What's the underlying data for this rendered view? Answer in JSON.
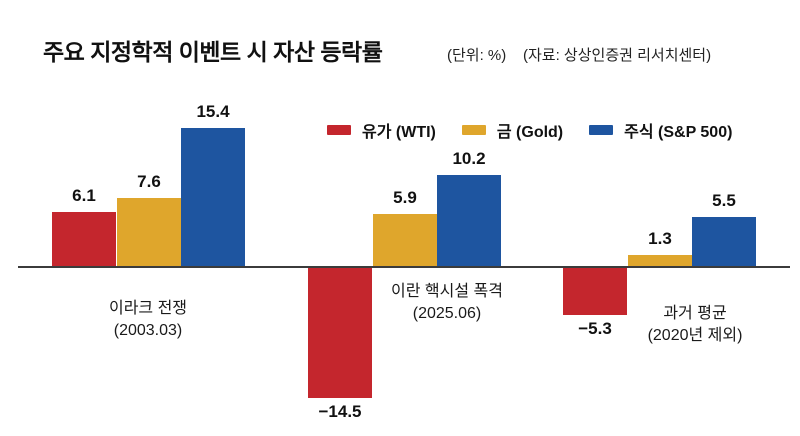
{
  "header": {
    "title": "주요 지정학적 이벤트 시 자산 등락률",
    "unit_label": "(단위: %)",
    "source_label": "(자료: 상상인증권 리서치센터)"
  },
  "legend": {
    "items": [
      {
        "label": "유가 (WTI)",
        "color": "#c4262d"
      },
      {
        "label": "금 (Gold)",
        "color": "#dfa62c"
      },
      {
        "label": "주식 (S&P 500)",
        "color": "#1e55a0"
      }
    ]
  },
  "chart_data": {
    "type": "bar",
    "title": "주요 지정학적 이벤트 시 자산 등락률",
    "unit": "%",
    "categories": [
      "이라크 전쟁 (2003.03)",
      "이란 핵시설 폭격 (2025.06)",
      "과거 평균 (2020년 제외)"
    ],
    "category_lines": [
      [
        "이라크 전쟁",
        "(2003.03)"
      ],
      [
        "이란 핵시설 폭격",
        "(2025.06)"
      ],
      [
        "과거 평균",
        "(2020년 제외)"
      ]
    ],
    "series": [
      {
        "name": "유가 (WTI)",
        "color": "#c4262d",
        "values": [
          6.1,
          -14.5,
          -5.3
        ]
      },
      {
        "name": "금 (Gold)",
        "color": "#dfa62c",
        "values": [
          7.6,
          5.9,
          1.3
        ]
      },
      {
        "name": "주식 (S&P 500)",
        "color": "#1e55a0",
        "values": [
          15.4,
          10.2,
          5.5
        ]
      }
    ],
    "baseline": 0,
    "grid": false,
    "legend_position": "top",
    "value_labels_shown": true
  }
}
